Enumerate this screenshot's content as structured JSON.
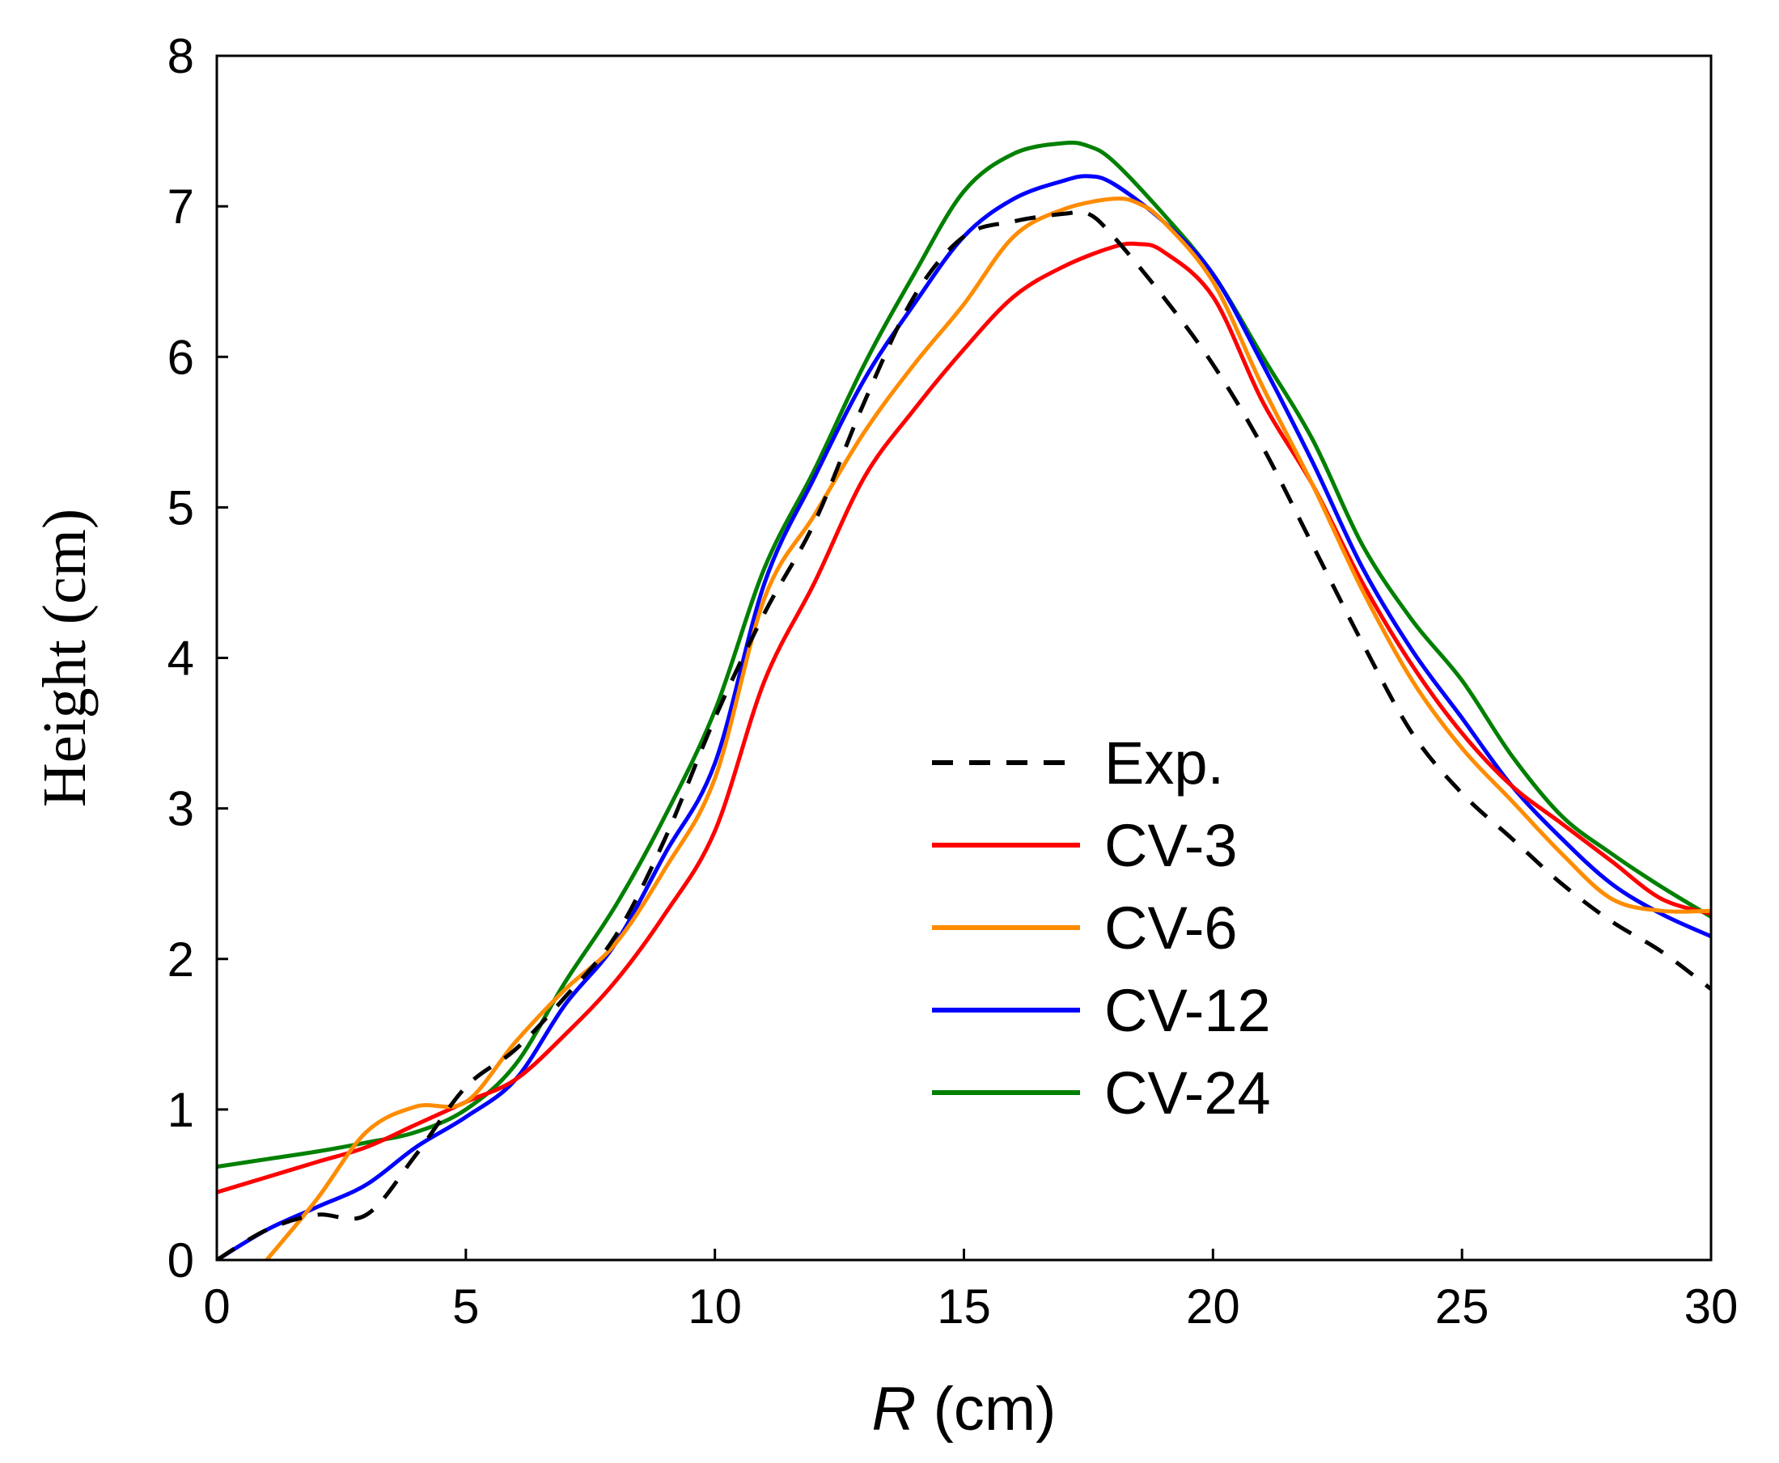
{
  "chart_data": {
    "type": "line",
    "title": "",
    "xlabel_italic": "R",
    "xlabel_rest": " (cm)",
    "ylabel": "Height (cm)",
    "xlim": [
      0,
      30
    ],
    "ylim": [
      0,
      8
    ],
    "xticks": [
      "0",
      "5",
      "10",
      "15",
      "20",
      "25",
      "30"
    ],
    "yticks": [
      "0",
      "1",
      "2",
      "3",
      "4",
      "5",
      "6",
      "7",
      "8"
    ],
    "grid": false,
    "legend_position": "center-right",
    "series": [
      {
        "name": "Exp.",
        "color": "#000000",
        "style": "dashed",
        "x": [
          0,
          1,
          2,
          3,
          4,
          5,
          6,
          7,
          8,
          9,
          10,
          11,
          12,
          13,
          14,
          15,
          16,
          17,
          17.5,
          18,
          19,
          20,
          21,
          22,
          23,
          24,
          25,
          26,
          27,
          28,
          29,
          30
        ],
        "y": [
          0,
          0.2,
          0.3,
          0.3,
          0.7,
          1.15,
          1.4,
          1.75,
          2.15,
          2.8,
          3.6,
          4.3,
          4.9,
          5.7,
          6.4,
          6.8,
          6.9,
          6.95,
          6.95,
          6.8,
          6.4,
          5.95,
          5.4,
          4.75,
          4.1,
          3.5,
          3.1,
          2.8,
          2.5,
          2.25,
          2.05,
          1.8
        ]
      },
      {
        "name": "CV-3",
        "color": "#ff0000",
        "style": "solid",
        "x": [
          0,
          1,
          2,
          3,
          4,
          5,
          6,
          7,
          8,
          9,
          10,
          11,
          12,
          13,
          14,
          15,
          16,
          17,
          18,
          18.5,
          19,
          20,
          21,
          22,
          23,
          24,
          25,
          26,
          27,
          28,
          29,
          30
        ],
        "y": [
          0.45,
          0.55,
          0.65,
          0.75,
          0.9,
          1.05,
          1.2,
          1.5,
          1.85,
          2.3,
          2.85,
          3.85,
          4.5,
          5.2,
          5.65,
          6.05,
          6.4,
          6.6,
          6.73,
          6.75,
          6.7,
          6.4,
          5.7,
          5.15,
          4.5,
          3.95,
          3.5,
          3.15,
          2.9,
          2.65,
          2.4,
          2.3
        ]
      },
      {
        "name": "CV-6",
        "color": "#ff8c00",
        "style": "solid",
        "x": [
          1,
          2,
          3,
          4,
          5,
          6,
          7,
          8,
          9,
          10,
          11,
          12,
          13,
          14,
          15,
          16,
          17,
          18,
          18.5,
          19,
          20,
          21,
          22,
          23,
          24,
          25,
          26,
          27,
          28,
          29,
          30
        ],
        "y": [
          0,
          0.4,
          0.85,
          1.02,
          1.05,
          1.45,
          1.8,
          2.1,
          2.6,
          3.2,
          4.4,
          4.95,
          5.5,
          5.95,
          6.35,
          6.8,
          6.98,
          7.05,
          7.02,
          6.9,
          6.5,
          5.8,
          5.15,
          4.45,
          3.85,
          3.4,
          3.05,
          2.7,
          2.4,
          2.32,
          2.32
        ]
      },
      {
        "name": "CV-12",
        "color": "#0000ff",
        "style": "solid",
        "x": [
          0,
          1,
          2,
          3,
          4,
          5,
          6,
          7,
          8,
          9,
          10,
          11,
          12,
          13,
          14,
          15,
          16,
          17,
          17.5,
          18,
          19,
          20,
          21,
          22,
          23,
          24,
          25,
          26,
          27,
          28,
          29,
          30
        ],
        "y": [
          0,
          0.2,
          0.35,
          0.5,
          0.75,
          0.95,
          1.2,
          1.7,
          2.1,
          2.7,
          3.3,
          4.5,
          5.2,
          5.85,
          6.35,
          6.8,
          7.05,
          7.17,
          7.2,
          7.15,
          6.9,
          6.55,
          5.95,
          5.3,
          4.6,
          4.05,
          3.6,
          3.15,
          2.8,
          2.5,
          2.3,
          2.15
        ]
      },
      {
        "name": "CV-24",
        "color": "#008000",
        "style": "solid",
        "x": [
          0,
          1,
          2,
          3,
          4,
          5,
          6,
          7,
          8,
          9,
          10,
          11,
          12,
          13,
          14,
          15,
          16,
          17,
          17.5,
          18,
          19,
          20,
          21,
          22,
          23,
          24,
          25,
          26,
          27,
          28,
          29,
          30
        ],
        "y": [
          0.62,
          0.67,
          0.72,
          0.78,
          0.85,
          1.0,
          1.3,
          1.85,
          2.35,
          2.95,
          3.65,
          4.6,
          5.25,
          5.95,
          6.55,
          7.1,
          7.35,
          7.42,
          7.4,
          7.3,
          6.95,
          6.55,
          6.0,
          5.45,
          4.75,
          4.25,
          3.85,
          3.35,
          2.95,
          2.7,
          2.48,
          2.28
        ]
      }
    ]
  }
}
